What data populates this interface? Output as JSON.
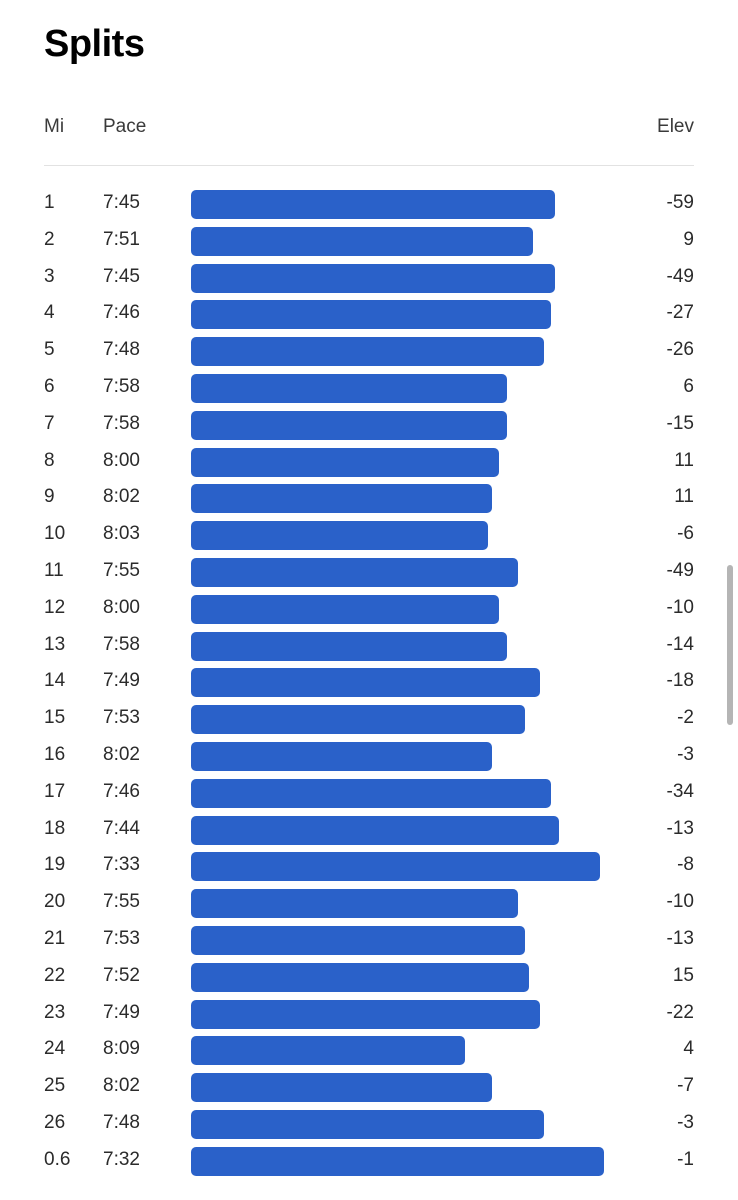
{
  "title": "Splits",
  "columns": {
    "mi": "Mi",
    "pace": "Pace",
    "elev": "Elev"
  },
  "bar_color": "#2a61c9",
  "splits": [
    {
      "mi": "1",
      "pace": "7:45",
      "elev": "-59"
    },
    {
      "mi": "2",
      "pace": "7:51",
      "elev": "9"
    },
    {
      "mi": "3",
      "pace": "7:45",
      "elev": "-49"
    },
    {
      "mi": "4",
      "pace": "7:46",
      "elev": "-27"
    },
    {
      "mi": "5",
      "pace": "7:48",
      "elev": "-26"
    },
    {
      "mi": "6",
      "pace": "7:58",
      "elev": "6"
    },
    {
      "mi": "7",
      "pace": "7:58",
      "elev": "-15"
    },
    {
      "mi": "8",
      "pace": "8:00",
      "elev": "11"
    },
    {
      "mi": "9",
      "pace": "8:02",
      "elev": "11"
    },
    {
      "mi": "10",
      "pace": "8:03",
      "elev": "-6"
    },
    {
      "mi": "11",
      "pace": "7:55",
      "elev": "-49"
    },
    {
      "mi": "12",
      "pace": "8:00",
      "elev": "-10"
    },
    {
      "mi": "13",
      "pace": "7:58",
      "elev": "-14"
    },
    {
      "mi": "14",
      "pace": "7:49",
      "elev": "-18"
    },
    {
      "mi": "15",
      "pace": "7:53",
      "elev": "-2"
    },
    {
      "mi": "16",
      "pace": "8:02",
      "elev": "-3"
    },
    {
      "mi": "17",
      "pace": "7:46",
      "elev": "-34"
    },
    {
      "mi": "18",
      "pace": "7:44",
      "elev": "-13"
    },
    {
      "mi": "19",
      "pace": "7:33",
      "elev": "-8"
    },
    {
      "mi": "20",
      "pace": "7:55",
      "elev": "-10"
    },
    {
      "mi": "21",
      "pace": "7:53",
      "elev": "-13"
    },
    {
      "mi": "22",
      "pace": "7:52",
      "elev": "15"
    },
    {
      "mi": "23",
      "pace": "7:49",
      "elev": "-22"
    },
    {
      "mi": "24",
      "pace": "8:09",
      "elev": "4"
    },
    {
      "mi": "25",
      "pace": "8:02",
      "elev": "-7"
    },
    {
      "mi": "26",
      "pace": "7:48",
      "elev": "-3"
    },
    {
      "mi": "0.6",
      "pace": "7:32",
      "elev": "-1"
    }
  ]
}
